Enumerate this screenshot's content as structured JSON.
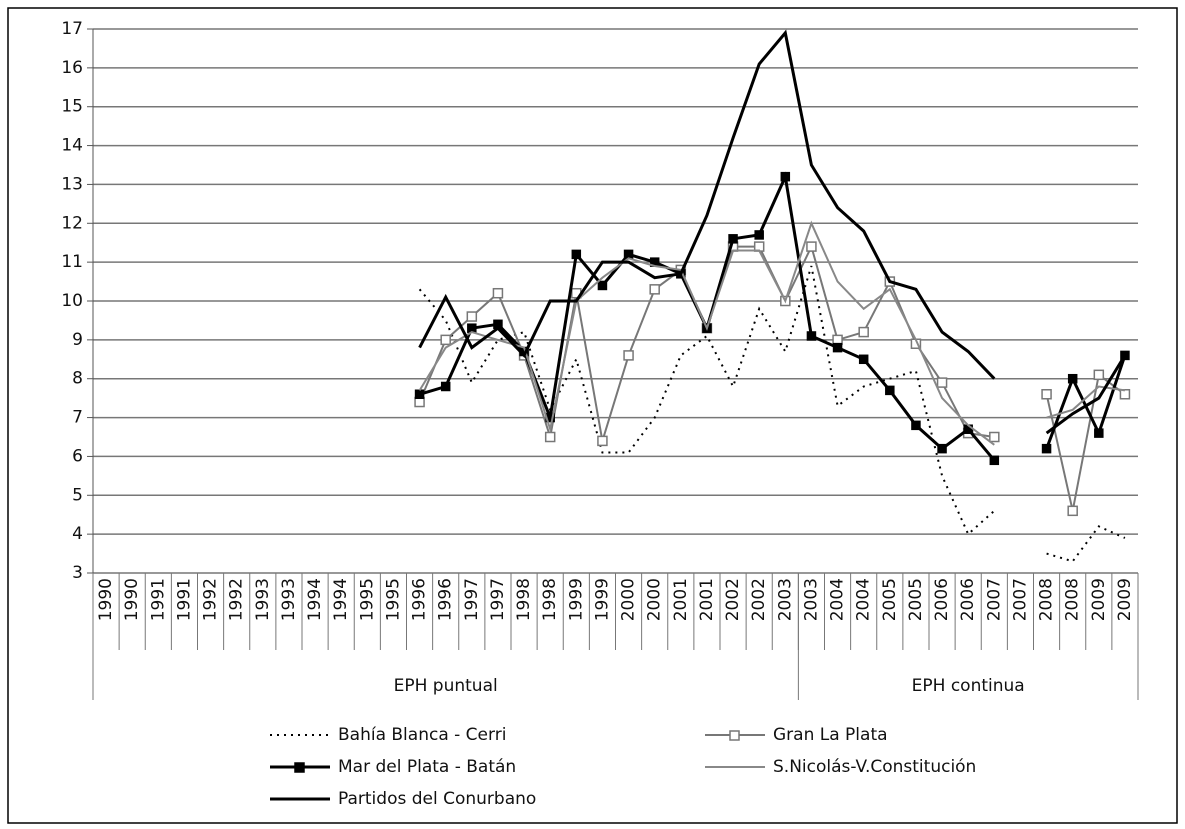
{
  "chart_data": {
    "type": "line",
    "categories": [
      "1990",
      "1990",
      "1991",
      "1991",
      "1992",
      "1992",
      "1993",
      "1993",
      "1994",
      "1994",
      "1995",
      "1995",
      "1996",
      "1996",
      "1997",
      "1997",
      "1998",
      "1998",
      "1999",
      "1999",
      "2000",
      "2000",
      "2001",
      "2001",
      "2002",
      "2002",
      "2003",
      "2003",
      "2004",
      "2004",
      "2005",
      "2005",
      "2006",
      "2006",
      "2007",
      "2007",
      "2008",
      "2008",
      "2009",
      "2009"
    ],
    "groups": [
      {
        "label": "EPH puntual",
        "span": 27
      },
      {
        "label": "EPH continua",
        "span": 13
      }
    ],
    "ylim": [
      3,
      17
    ],
    "yticks": [
      3,
      4,
      5,
      6,
      7,
      8,
      9,
      10,
      11,
      12,
      13,
      14,
      15,
      16,
      17
    ],
    "grid": true,
    "series": [
      {
        "name": "Bahía Blanca - Cerri",
        "color": "#000000",
        "dash": "dotted",
        "marker": "none",
        "style": "thin",
        "values": [
          null,
          null,
          null,
          null,
          null,
          null,
          null,
          null,
          null,
          null,
          null,
          null,
          10.3,
          9.5,
          7.9,
          9.0,
          9.2,
          7.2,
          8.5,
          6.1,
          6.1,
          7.0,
          8.6,
          9.1,
          7.8,
          9.8,
          8.7,
          10.9,
          7.3,
          7.8,
          8.0,
          8.2,
          5.5,
          4.0,
          4.6,
          null,
          3.5,
          3.3,
          4.2,
          3.9
        ]
      },
      {
        "name": "Gran La Plata",
        "color": "#777777",
        "dash": "solid",
        "marker": "open-square",
        "style": "thin",
        "values": [
          null,
          null,
          null,
          null,
          null,
          null,
          null,
          null,
          null,
          null,
          null,
          null,
          7.4,
          9.0,
          9.6,
          10.2,
          8.6,
          6.5,
          10.2,
          6.4,
          8.6,
          10.3,
          10.8,
          9.3,
          11.4,
          11.4,
          10.0,
          11.4,
          9.0,
          9.2,
          10.5,
          8.9,
          7.9,
          6.6,
          6.5,
          null,
          7.6,
          4.6,
          8.1,
          7.6
        ]
      },
      {
        "name": "Mar del Plata - Batán",
        "color": "#000000",
        "dash": "solid",
        "marker": "filled-square",
        "style": "thick",
        "values": [
          null,
          null,
          null,
          null,
          null,
          null,
          null,
          null,
          null,
          null,
          null,
          null,
          7.6,
          7.8,
          9.3,
          9.4,
          8.7,
          7.0,
          11.2,
          10.4,
          11.2,
          11.0,
          10.7,
          9.3,
          11.6,
          11.7,
          13.2,
          9.1,
          8.8,
          8.5,
          7.7,
          6.8,
          6.2,
          6.7,
          5.9,
          null,
          6.2,
          8.0,
          6.6,
          8.6
        ]
      },
      {
        "name": "S.Nicolás-V.Constitución",
        "color": "#888888",
        "dash": "solid",
        "marker": "none",
        "style": "thin",
        "values": [
          null,
          null,
          null,
          null,
          null,
          null,
          null,
          null,
          null,
          null,
          null,
          null,
          7.7,
          8.8,
          9.2,
          9.0,
          8.8,
          6.7,
          10.0,
          10.6,
          11.1,
          10.9,
          10.8,
          9.3,
          11.3,
          11.3,
          10.0,
          12.0,
          10.5,
          9.8,
          10.3,
          9.0,
          7.5,
          6.8,
          6.3,
          null,
          7.0,
          7.2,
          7.8,
          7.7
        ]
      },
      {
        "name": "Partidos del Conurbano",
        "color": "#000000",
        "dash": "solid",
        "marker": "none",
        "style": "thick",
        "values": [
          null,
          null,
          null,
          null,
          null,
          null,
          null,
          null,
          null,
          null,
          null,
          null,
          8.8,
          10.1,
          8.8,
          9.3,
          8.6,
          10.0,
          10.0,
          11.0,
          11.0,
          10.6,
          10.7,
          12.2,
          14.2,
          16.1,
          16.9,
          13.5,
          12.4,
          11.8,
          10.5,
          10.3,
          9.2,
          8.7,
          8.0,
          null,
          6.6,
          7.1,
          7.5,
          8.6
        ]
      }
    ]
  }
}
